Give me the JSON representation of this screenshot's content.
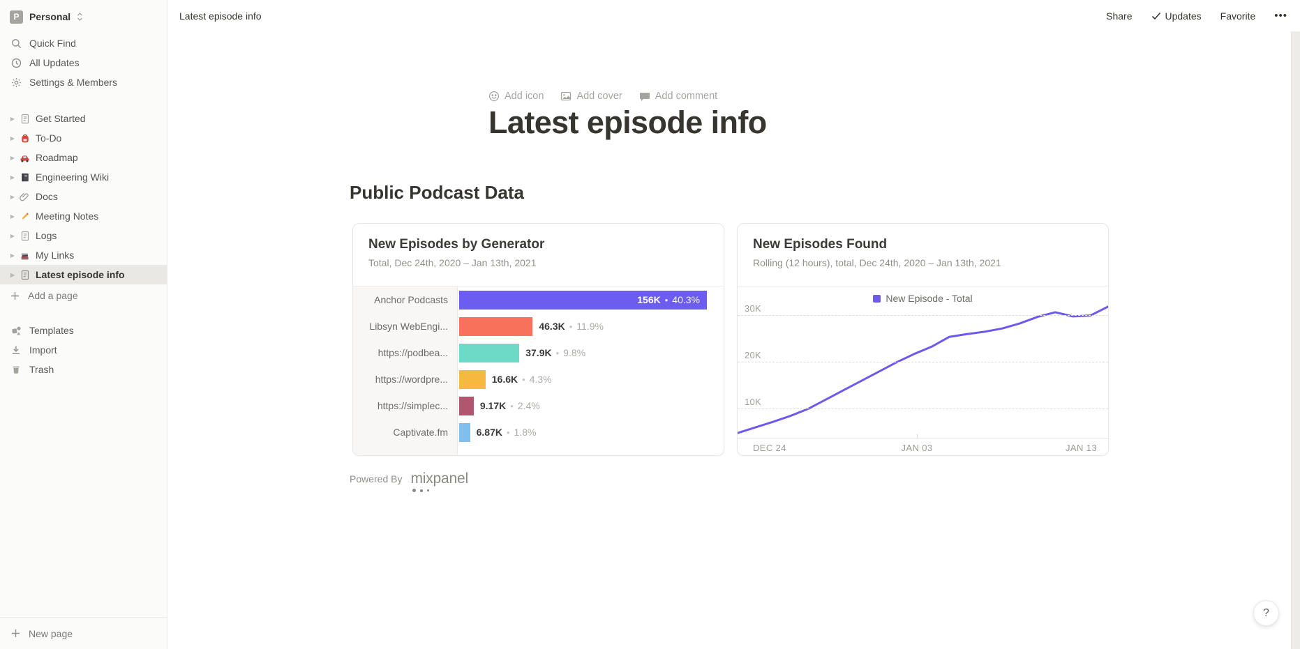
{
  "workspace": {
    "initial": "P",
    "name": "Personal"
  },
  "topbar": {
    "breadcrumb": "Latest episode info",
    "share": "Share",
    "updates": "Updates",
    "favorite": "Favorite",
    "more": "•••"
  },
  "sidebar": {
    "nav": [
      {
        "label": "Quick Find"
      },
      {
        "label": "All Updates"
      },
      {
        "label": "Settings & Members"
      }
    ],
    "pages": [
      {
        "label": "Get Started"
      },
      {
        "label": "To-Do"
      },
      {
        "label": "Roadmap"
      },
      {
        "label": "Engineering Wiki"
      },
      {
        "label": "Docs"
      },
      {
        "label": "Meeting Notes"
      },
      {
        "label": "Logs"
      },
      {
        "label": "My Links"
      },
      {
        "label": "Latest episode info"
      }
    ],
    "add_a_page": "Add a page",
    "tools": [
      {
        "label": "Templates"
      },
      {
        "label": "Import"
      },
      {
        "label": "Trash"
      }
    ],
    "new_page": "New page"
  },
  "page": {
    "controls": {
      "add_icon": "Add icon",
      "add_cover": "Add cover",
      "add_comment": "Add comment"
    },
    "title": "Latest episode info",
    "section_heading": "Public Podcast Data",
    "powered_by": "Powered By",
    "mixpanel_logo": "mixpanel",
    "help": "?"
  },
  "chart_data": [
    {
      "type": "bar",
      "title": "New Episodes by Generator",
      "subtitle": "Total, Dec 24th, 2020 – Jan 13th, 2021",
      "orientation": "horizontal",
      "categories": [
        "Anchor Podcasts",
        "Libsyn WebEngi...",
        "https://podbea...",
        "https://wordpre...",
        "https://simplec...",
        "Captivate.fm"
      ],
      "values": [
        156000,
        46300,
        37900,
        16600,
        9170,
        6870
      ],
      "value_labels": [
        "156K",
        "46.3K",
        "37.9K",
        "16.6K",
        "9.17K",
        "6.87K"
      ],
      "pct_labels": [
        "40.3%",
        "11.9%",
        "9.8%",
        "4.3%",
        "2.4%",
        "1.8%"
      ],
      "separator": "•",
      "colors": [
        "#6C5CF0",
        "#F8715A",
        "#6CDAC6",
        "#F6B93F",
        "#B2556E",
        "#7EBFEF"
      ],
      "xmax": 156000
    },
    {
      "type": "line",
      "title": "New Episodes Found",
      "subtitle": "Rolling (12 hours), total, Dec 24th, 2020 – Jan 13th, 2021",
      "legend_label": "New Episode - Total",
      "color": "#6D59EE",
      "x_range": [
        "Dec 24, 2020",
        "Jan 13, 2021"
      ],
      "x_tick_labels": [
        "DEC 24",
        "JAN 03",
        "JAN 13"
      ],
      "y_tick_labels": [
        "10K",
        "20K",
        "30K"
      ],
      "y_tick_values": [
        10000,
        20000,
        30000
      ],
      "ylim": [
        3500,
        33000
      ],
      "grid": "dashed-horizontal",
      "legend_position": "top-center",
      "values": [
        4600,
        5800,
        7000,
        8300,
        9800,
        11800,
        13800,
        15800,
        17800,
        19800,
        21600,
        23200,
        25300,
        25900,
        26400,
        27100,
        28200,
        29600,
        30600,
        29700,
        29900,
        31800
      ]
    }
  ]
}
